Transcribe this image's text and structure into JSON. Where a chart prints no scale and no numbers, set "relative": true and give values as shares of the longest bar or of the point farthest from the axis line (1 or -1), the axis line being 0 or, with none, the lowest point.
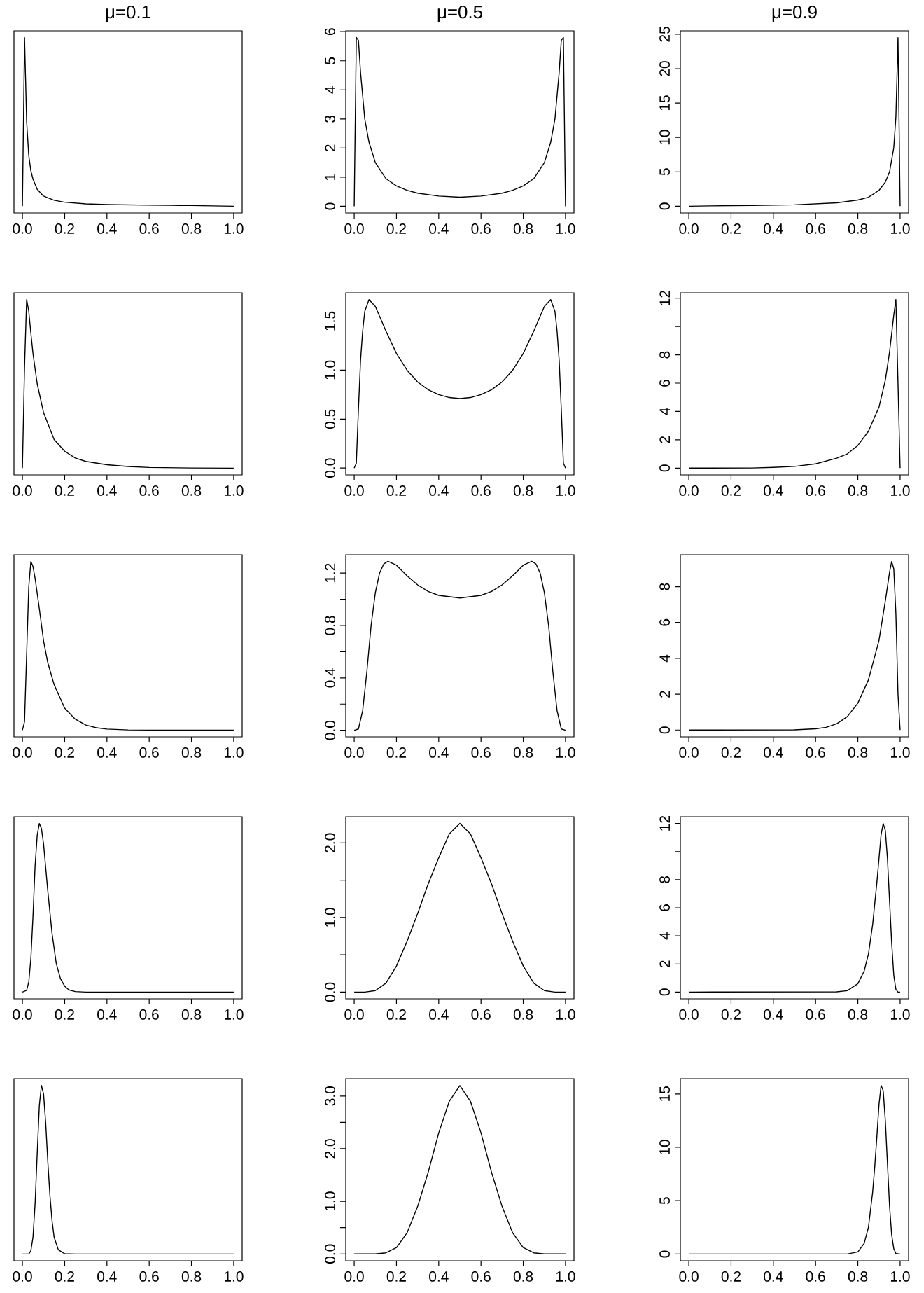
{
  "chart_data": [
    {
      "type": "line",
      "title": "μ=0.1",
      "relative": true,
      "tick_labels": "x",
      "color": "#000000",
      "xlim": [
        -0.04,
        1.04
      ],
      "xticks": [
        {
          "value": 0,
          "label": "0.0"
        },
        {
          "value": 0.2,
          "label": "0.2"
        },
        {
          "value": 0.4,
          "label": "0.4"
        },
        {
          "value": 0.6,
          "label": "0.6"
        },
        {
          "value": 0.8,
          "label": "0.8"
        },
        {
          "value": 1,
          "label": "1.0"
        }
      ],
      "x": [
        0,
        0.01,
        0.015,
        0.02,
        0.03,
        0.04,
        0.05,
        0.07,
        0.1,
        0.15,
        0.2,
        0.3,
        0.4,
        0.5,
        0.6,
        0.7,
        0.8,
        0.9,
        1
      ],
      "values": [
        0,
        1,
        0.75,
        0.5,
        0.3,
        0.21,
        0.16,
        0.1,
        0.06,
        0.035,
        0.024,
        0.014,
        0.01,
        0.008,
        0.006,
        0.005,
        0.004,
        0.002,
        0
      ]
    },
    {
      "type": "line",
      "title": "μ=0.5",
      "color": "#000000",
      "xlim": [
        -0.04,
        1.04
      ],
      "xticks": [
        {
          "value": 0,
          "label": "0.0"
        },
        {
          "value": 0.2,
          "label": "0.2"
        },
        {
          "value": 0.4,
          "label": "0.4"
        },
        {
          "value": 0.6,
          "label": "0.6"
        },
        {
          "value": 0.8,
          "label": "0.8"
        },
        {
          "value": 1,
          "label": "1.0"
        }
      ],
      "ylim": [
        -0.23,
        6.03
      ],
      "yticks": [
        0,
        1,
        2,
        3,
        4,
        5,
        6
      ],
      "x": [
        0,
        0.01,
        0.02,
        0.03,
        0.05,
        0.07,
        0.1,
        0.15,
        0.2,
        0.25,
        0.3,
        0.4,
        0.5,
        0.6,
        0.7,
        0.75,
        0.8,
        0.85,
        0.9,
        0.93,
        0.95,
        0.97,
        0.98,
        0.99,
        1
      ],
      "values": [
        0,
        5.8,
        5.7,
        4.6,
        3.0,
        2.2,
        1.5,
        0.95,
        0.7,
        0.55,
        0.45,
        0.35,
        0.31,
        0.35,
        0.45,
        0.55,
        0.7,
        0.95,
        1.5,
        2.2,
        3.0,
        4.6,
        5.7,
        5.8,
        0
      ]
    },
    {
      "type": "line",
      "title": "μ=0.9",
      "color": "#000000",
      "xlim": [
        -0.04,
        1.04
      ],
      "xticks": [
        {
          "value": 0,
          "label": "0.0"
        },
        {
          "value": 0.2,
          "label": "0.2"
        },
        {
          "value": 0.4,
          "label": "0.4"
        },
        {
          "value": 0.6,
          "label": "0.6"
        },
        {
          "value": 0.8,
          "label": "0.8"
        },
        {
          "value": 1,
          "label": "1.0"
        }
      ],
      "ylim": [
        -0.98,
        25.5
      ],
      "yticks": [
        0,
        5,
        10,
        15,
        20,
        25
      ],
      "x": [
        0,
        0.1,
        0.2,
        0.3,
        0.4,
        0.5,
        0.7,
        0.8,
        0.85,
        0.9,
        0.93,
        0.95,
        0.97,
        0.98,
        0.99,
        1
      ],
      "values": [
        0,
        0.05,
        0.08,
        0.1,
        0.15,
        0.2,
        0.5,
        0.9,
        1.3,
        2.3,
        3.5,
        5,
        8.5,
        13,
        24.5,
        0
      ]
    },
    {
      "type": "line",
      "relative": true,
      "tick_labels": "x",
      "color": "#000000",
      "xlim": [
        -0.04,
        1.04
      ],
      "xticks": [
        {
          "value": 0,
          "label": "0.0"
        },
        {
          "value": 0.2,
          "label": "0.2"
        },
        {
          "value": 0.4,
          "label": "0.4"
        },
        {
          "value": 0.6,
          "label": "0.6"
        },
        {
          "value": 0.8,
          "label": "0.8"
        },
        {
          "value": 1,
          "label": "1.0"
        }
      ],
      "x": [
        0,
        0.01,
        0.02,
        0.03,
        0.04,
        0.05,
        0.07,
        0.1,
        0.15,
        0.2,
        0.25,
        0.3,
        0.4,
        0.5,
        0.6,
        0.8,
        1
      ],
      "values": [
        0,
        0.6,
        1,
        0.93,
        0.8,
        0.68,
        0.5,
        0.33,
        0.17,
        0.1,
        0.06,
        0.04,
        0.02,
        0.01,
        0.004,
        0.001,
        0
      ]
    },
    {
      "type": "line",
      "color": "#000000",
      "xlim": [
        -0.04,
        1.04
      ],
      "xticks": [
        {
          "value": 0,
          "label": "0.0"
        },
        {
          "value": 0.2,
          "label": "0.2"
        },
        {
          "value": 0.4,
          "label": "0.4"
        },
        {
          "value": 0.6,
          "label": "0.6"
        },
        {
          "value": 0.8,
          "label": "0.8"
        },
        {
          "value": 1,
          "label": "1.0"
        }
      ],
      "ylim": [
        -0.07,
        1.79
      ],
      "yticks": [
        {
          "value": 0,
          "label": "0.0"
        },
        {
          "value": 0.5,
          "label": "0.5"
        },
        {
          "value": 1,
          "label": "1.0"
        },
        {
          "value": 1.5,
          "label": "1.5"
        }
      ],
      "x": [
        0,
        0.01,
        0.02,
        0.03,
        0.04,
        0.05,
        0.07,
        0.1,
        0.15,
        0.2,
        0.25,
        0.3,
        0.35,
        0.4,
        0.45,
        0.5,
        0.55,
        0.6,
        0.65,
        0.7,
        0.75,
        0.8,
        0.85,
        0.9,
        0.93,
        0.95,
        0.96,
        0.97,
        0.98,
        0.99,
        1
      ],
      "values": [
        0,
        0.05,
        0.6,
        1.1,
        1.4,
        1.6,
        1.72,
        1.65,
        1.4,
        1.17,
        1.0,
        0.88,
        0.8,
        0.75,
        0.72,
        0.71,
        0.72,
        0.75,
        0.8,
        0.88,
        1.0,
        1.17,
        1.4,
        1.65,
        1.72,
        1.6,
        1.4,
        1.1,
        0.6,
        0.05,
        0
      ]
    },
    {
      "type": "line",
      "color": "#000000",
      "xlim": [
        -0.04,
        1.04
      ],
      "xticks": [
        {
          "value": 0,
          "label": "0.0"
        },
        {
          "value": 0.2,
          "label": "0.2"
        },
        {
          "value": 0.4,
          "label": "0.4"
        },
        {
          "value": 0.6,
          "label": "0.6"
        },
        {
          "value": 0.8,
          "label": "0.8"
        },
        {
          "value": 1,
          "label": "1.0"
        }
      ],
      "ylim": [
        -0.48,
        12.38
      ],
      "yticks": [
        0,
        2,
        4,
        6,
        8,
        {
          "value": 10,
          "label": null
        },
        12
      ],
      "x": [
        0,
        0.3,
        0.4,
        0.5,
        0.6,
        0.7,
        0.75,
        0.8,
        0.85,
        0.9,
        0.93,
        0.95,
        0.97,
        0.98,
        0.99,
        1
      ],
      "values": [
        0,
        0.01,
        0.05,
        0.12,
        0.3,
        0.7,
        1.0,
        1.6,
        2.6,
        4.3,
        6.2,
        8.2,
        10.8,
        11.9,
        6,
        0
      ]
    },
    {
      "type": "line",
      "relative": true,
      "tick_labels": "x",
      "color": "#000000",
      "xlim": [
        -0.04,
        1.04
      ],
      "xticks": [
        {
          "value": 0,
          "label": "0.0"
        },
        {
          "value": 0.2,
          "label": "0.2"
        },
        {
          "value": 0.4,
          "label": "0.4"
        },
        {
          "value": 0.6,
          "label": "0.6"
        },
        {
          "value": 0.8,
          "label": "0.8"
        },
        {
          "value": 1,
          "label": "1.0"
        }
      ],
      "x": [
        0,
        0.01,
        0.02,
        0.03,
        0.04,
        0.05,
        0.06,
        0.08,
        0.1,
        0.12,
        0.15,
        0.2,
        0.25,
        0.3,
        0.35,
        0.4,
        0.5,
        0.6,
        1
      ],
      "values": [
        0,
        0.05,
        0.45,
        0.85,
        1,
        0.97,
        0.9,
        0.72,
        0.53,
        0.4,
        0.27,
        0.13,
        0.065,
        0.03,
        0.014,
        0.006,
        0.001,
        0,
        0
      ]
    },
    {
      "type": "line",
      "color": "#000000",
      "xlim": [
        -0.04,
        1.04
      ],
      "xticks": [
        {
          "value": 0,
          "label": "0.0"
        },
        {
          "value": 0.2,
          "label": "0.2"
        },
        {
          "value": 0.4,
          "label": "0.4"
        },
        {
          "value": 0.6,
          "label": "0.6"
        },
        {
          "value": 0.8,
          "label": "0.8"
        },
        {
          "value": 1,
          "label": "1.0"
        }
      ],
      "ylim": [
        -0.05,
        1.34
      ],
      "yticks": [
        {
          "value": 0,
          "label": "0.0"
        },
        {
          "value": 0.2,
          "label": null
        },
        {
          "value": 0.4,
          "label": "0.4"
        },
        {
          "value": 0.6,
          "label": null
        },
        {
          "value": 0.8,
          "label": "0.8"
        },
        {
          "value": 1,
          "label": null
        },
        {
          "value": 1.2,
          "label": "1.2"
        }
      ],
      "x": [
        0,
        0.02,
        0.04,
        0.06,
        0.08,
        0.1,
        0.12,
        0.14,
        0.16,
        0.2,
        0.25,
        0.3,
        0.35,
        0.4,
        0.45,
        0.5,
        0.55,
        0.6,
        0.65,
        0.7,
        0.75,
        0.8,
        0.84,
        0.86,
        0.88,
        0.9,
        0.92,
        0.94,
        0.96,
        0.98,
        1
      ],
      "values": [
        0,
        0.01,
        0.15,
        0.45,
        0.8,
        1.05,
        1.2,
        1.27,
        1.29,
        1.26,
        1.18,
        1.11,
        1.06,
        1.03,
        1.02,
        1.01,
        1.02,
        1.03,
        1.06,
        1.11,
        1.18,
        1.26,
        1.29,
        1.27,
        1.2,
        1.05,
        0.8,
        0.45,
        0.15,
        0.01,
        0
      ]
    },
    {
      "type": "line",
      "color": "#000000",
      "xlim": [
        -0.04,
        1.04
      ],
      "xticks": [
        {
          "value": 0,
          "label": "0.0"
        },
        {
          "value": 0.2,
          "label": "0.2"
        },
        {
          "value": 0.4,
          "label": "0.4"
        },
        {
          "value": 0.6,
          "label": "0.6"
        },
        {
          "value": 0.8,
          "label": "0.8"
        },
        {
          "value": 1,
          "label": "1.0"
        }
      ],
      "ylim": [
        -0.38,
        9.78
      ],
      "yticks": [
        0,
        2,
        4,
        6,
        8
      ],
      "x": [
        0,
        0.5,
        0.6,
        0.65,
        0.7,
        0.75,
        0.8,
        0.85,
        0.9,
        0.93,
        0.95,
        0.96,
        0.97,
        0.98,
        0.99,
        1
      ],
      "values": [
        0,
        0.01,
        0.07,
        0.15,
        0.35,
        0.75,
        1.5,
        2.8,
        5.0,
        7.2,
        8.8,
        9.4,
        9.0,
        6.5,
        2,
        0
      ]
    },
    {
      "type": "line",
      "relative": true,
      "tick_labels": "x",
      "color": "#000000",
      "xlim": [
        -0.04,
        1.04
      ],
      "xticks": [
        {
          "value": 0,
          "label": "0.0"
        },
        {
          "value": 0.2,
          "label": "0.2"
        },
        {
          "value": 0.4,
          "label": "0.4"
        },
        {
          "value": 0.6,
          "label": "0.6"
        },
        {
          "value": 0.8,
          "label": "0.8"
        },
        {
          "value": 1,
          "label": "1.0"
        }
      ],
      "x": [
        0,
        0.02,
        0.03,
        0.04,
        0.05,
        0.06,
        0.07,
        0.08,
        0.09,
        0.1,
        0.12,
        0.14,
        0.16,
        0.18,
        0.2,
        0.22,
        0.25,
        0.3,
        1
      ],
      "values": [
        0,
        0.01,
        0.06,
        0.2,
        0.45,
        0.75,
        0.93,
        1,
        0.97,
        0.88,
        0.6,
        0.35,
        0.17,
        0.08,
        0.035,
        0.013,
        0.003,
        0,
        0
      ]
    },
    {
      "type": "line",
      "color": "#000000",
      "xlim": [
        -0.04,
        1.04
      ],
      "xticks": [
        {
          "value": 0,
          "label": "0.0"
        },
        {
          "value": 0.2,
          "label": "0.2"
        },
        {
          "value": 0.4,
          "label": "0.4"
        },
        {
          "value": 0.6,
          "label": "0.6"
        },
        {
          "value": 0.8,
          "label": "0.8"
        },
        {
          "value": 1,
          "label": "1.0"
        }
      ],
      "ylim": [
        -0.09,
        2.35
      ],
      "yticks": [
        {
          "value": 0,
          "label": "0.0"
        },
        {
          "value": 0.5,
          "label": null
        },
        {
          "value": 1,
          "label": "1.0"
        },
        {
          "value": 1.5,
          "label": null
        },
        {
          "value": 2,
          "label": "2.0"
        }
      ],
      "x": [
        0,
        0.05,
        0.1,
        0.15,
        0.2,
        0.25,
        0.3,
        0.35,
        0.4,
        0.45,
        0.5,
        0.55,
        0.6,
        0.65,
        0.7,
        0.75,
        0.8,
        0.85,
        0.9,
        0.95,
        1
      ],
      "values": [
        0,
        0,
        0.02,
        0.12,
        0.35,
        0.68,
        1.05,
        1.45,
        1.8,
        2.12,
        2.26,
        2.12,
        1.8,
        1.45,
        1.05,
        0.68,
        0.35,
        0.12,
        0.02,
        0,
        0
      ]
    },
    {
      "type": "line",
      "color": "#000000",
      "xlim": [
        -0.04,
        1.04
      ],
      "xticks": [
        {
          "value": 0,
          "label": "0.0"
        },
        {
          "value": 0.2,
          "label": "0.2"
        },
        {
          "value": 0.4,
          "label": "0.4"
        },
        {
          "value": 0.6,
          "label": "0.6"
        },
        {
          "value": 0.8,
          "label": "0.8"
        },
        {
          "value": 1,
          "label": "1.0"
        }
      ],
      "ylim": [
        -0.48,
        12.48
      ],
      "yticks": [
        0,
        2,
        4,
        6,
        8,
        {
          "value": 10,
          "label": null
        },
        12
      ],
      "x": [
        0,
        0.7,
        0.75,
        0.8,
        0.83,
        0.85,
        0.87,
        0.89,
        0.9,
        0.91,
        0.92,
        0.93,
        0.94,
        0.95,
        0.96,
        0.97,
        0.98,
        0.99,
        1
      ],
      "values": [
        0,
        0.02,
        0.1,
        0.6,
        1.5,
        2.7,
        4.8,
        7.8,
        9.5,
        11.2,
        12,
        11.5,
        9.5,
        6.5,
        3.5,
        1.2,
        0.2,
        0,
        0
      ]
    },
    {
      "type": "line",
      "relative": true,
      "tick_labels": "x",
      "color": "#000000",
      "xlim": [
        -0.04,
        1.04
      ],
      "xticks": [
        {
          "value": 0,
          "label": "0.0"
        },
        {
          "value": 0.2,
          "label": "0.2"
        },
        {
          "value": 0.4,
          "label": "0.4"
        },
        {
          "value": 0.6,
          "label": "0.6"
        },
        {
          "value": 0.8,
          "label": "0.8"
        },
        {
          "value": 1,
          "label": "1.0"
        }
      ],
      "x": [
        0,
        0.03,
        0.04,
        0.05,
        0.06,
        0.07,
        0.08,
        0.09,
        0.1,
        0.11,
        0.12,
        0.13,
        0.14,
        0.15,
        0.17,
        0.2,
        0.25,
        1
      ],
      "values": [
        0,
        0,
        0.02,
        0.1,
        0.3,
        0.6,
        0.88,
        1,
        0.95,
        0.78,
        0.55,
        0.35,
        0.2,
        0.1,
        0.025,
        0.002,
        0,
        0
      ]
    },
    {
      "type": "line",
      "color": "#000000",
      "xlim": [
        -0.04,
        1.04
      ],
      "xticks": [
        {
          "value": 0,
          "label": "0.0"
        },
        {
          "value": 0.2,
          "label": "0.2"
        },
        {
          "value": 0.4,
          "label": "0.4"
        },
        {
          "value": 0.6,
          "label": "0.6"
        },
        {
          "value": 0.8,
          "label": "0.8"
        },
        {
          "value": 1,
          "label": "1.0"
        }
      ],
      "ylim": [
        -0.13,
        3.33
      ],
      "yticks": [
        {
          "value": 0,
          "label": "0.0"
        },
        {
          "value": 0.5,
          "label": null
        },
        {
          "value": 1,
          "label": "1.0"
        },
        {
          "value": 1.5,
          "label": null
        },
        {
          "value": 2,
          "label": "2.0"
        },
        {
          "value": 2.5,
          "label": null
        },
        {
          "value": 3,
          "label": "3.0"
        }
      ],
      "x": [
        0,
        0.1,
        0.15,
        0.2,
        0.25,
        0.3,
        0.35,
        0.4,
        0.45,
        0.5,
        0.55,
        0.6,
        0.65,
        0.7,
        0.75,
        0.8,
        0.85,
        0.9,
        1
      ],
      "values": [
        0,
        0,
        0.02,
        0.12,
        0.4,
        0.9,
        1.55,
        2.3,
        2.9,
        3.2,
        2.9,
        2.3,
        1.55,
        0.9,
        0.4,
        0.12,
        0.02,
        0,
        0
      ]
    },
    {
      "type": "line",
      "color": "#000000",
      "xlim": [
        -0.04,
        1.04
      ],
      "xticks": [
        {
          "value": 0,
          "label": "0.0"
        },
        {
          "value": 0.2,
          "label": "0.2"
        },
        {
          "value": 0.4,
          "label": "0.4"
        },
        {
          "value": 0.6,
          "label": "0.6"
        },
        {
          "value": 0.8,
          "label": "0.8"
        },
        {
          "value": 1,
          "label": "1.0"
        }
      ],
      "ylim": [
        -0.63,
        16.43
      ],
      "yticks": [
        0,
        5,
        10,
        15
      ],
      "x": [
        0,
        0.75,
        0.8,
        0.83,
        0.85,
        0.87,
        0.88,
        0.89,
        0.9,
        0.91,
        0.92,
        0.93,
        0.94,
        0.95,
        0.96,
        0.97,
        0.98,
        1
      ],
      "values": [
        0,
        0,
        0.2,
        1.0,
        2.5,
        5.8,
        8.2,
        11,
        14,
        15.8,
        15.3,
        12.5,
        8.5,
        4.5,
        1.8,
        0.5,
        0.05,
        0
      ]
    }
  ]
}
